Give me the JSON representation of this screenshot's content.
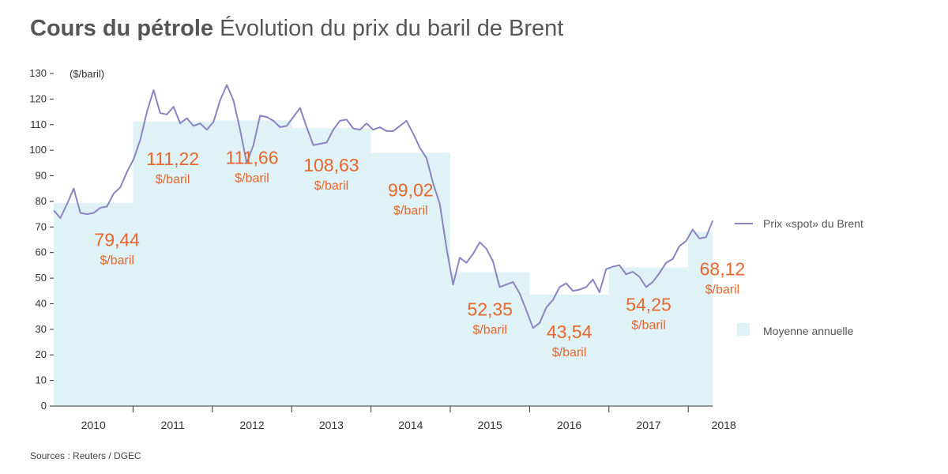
{
  "header": {
    "title_bold": "Cours du pétrole",
    "title_rest": "Évolution du prix du baril de Brent"
  },
  "source": "Sources : Reuters / DGEC",
  "colors": {
    "line": "#8b84c3",
    "bar": "#dff2f6",
    "label": "#e8662d",
    "axis": "#333333"
  },
  "chart_data": {
    "type": "line",
    "title": "Évolution du prix du baril de Brent",
    "ylabel": "($/baril)",
    "ylim": [
      0,
      130
    ],
    "yticks": [
      "0",
      "10",
      "20",
      "30",
      "40",
      "50",
      "60",
      "70",
      "80",
      "90",
      "100",
      "110",
      "120",
      "130"
    ],
    "years": [
      "2010",
      "2011",
      "2012",
      "2013",
      "2014",
      "2015",
      "2016",
      "2017",
      "2018"
    ],
    "annual_average": {
      "name": "Moyenne annuelle",
      "values": [
        79.44,
        111.22,
        111.66,
        108.63,
        99.02,
        52.35,
        43.54,
        54.25,
        68.12
      ],
      "labels": [
        "79,44",
        "111,22",
        "111,66",
        "108,63",
        "99,02",
        "52,35",
        "43,54",
        "54,25",
        "68,12"
      ],
      "unit_label": "$/baril"
    },
    "spot": {
      "name": "Prix «spot» du Brent",
      "x_months": [
        0,
        1,
        2,
        3,
        4,
        5,
        6,
        7,
        8,
        9,
        10,
        11,
        12,
        13,
        14,
        15,
        16,
        17,
        18,
        19,
        20,
        21,
        22,
        23,
        24,
        25,
        26,
        27,
        28,
        29,
        30,
        31,
        32,
        33,
        34,
        35,
        36,
        37,
        38,
        39,
        40,
        41,
        42,
        43,
        44,
        45,
        46,
        47,
        48,
        49,
        50,
        51,
        52,
        53,
        54,
        55,
        56,
        57,
        58,
        59,
        60,
        61,
        62,
        63,
        64,
        65,
        66,
        67,
        68,
        69,
        70,
        71,
        72,
        73,
        74,
        75,
        76,
        77,
        78,
        79,
        80,
        81,
        82,
        83,
        84,
        85,
        86,
        87,
        88,
        89,
        90,
        91,
        92,
        93,
        94,
        95,
        96,
        97,
        98,
        99
      ],
      "values": [
        76.5,
        73.5,
        79,
        85,
        75.5,
        75,
        75.5,
        77.5,
        78,
        83,
        85.5,
        91.5,
        96.5,
        104,
        115,
        123.5,
        114.5,
        114,
        117,
        110.5,
        112.5,
        109.5,
        110.5,
        108,
        111,
        119.5,
        125.5,
        119.5,
        108,
        95,
        102,
        113.5,
        113,
        111.5,
        109,
        109.5,
        113,
        116.5,
        109,
        102,
        102.5,
        103,
        108,
        111.5,
        112,
        108.5,
        108,
        110.5,
        108,
        109,
        107.5,
        107.5,
        109.5,
        111.5,
        106.5,
        101,
        97,
        87,
        79,
        62,
        47.5,
        58,
        56,
        59.5,
        64,
        61.5,
        56.5,
        46.5,
        47.5,
        48.5,
        44,
        37.5,
        30.5,
        32.5,
        38.5,
        41.5,
        46.5,
        48,
        45,
        45.5,
        46.5,
        49.5,
        44.5,
        53.5,
        54.5,
        55,
        51.5,
        52.5,
        50.5,
        46.5,
        48.5,
        52,
        56,
        57.5,
        62.5,
        64.5,
        69,
        65.5,
        66,
        72.5
      ]
    }
  }
}
